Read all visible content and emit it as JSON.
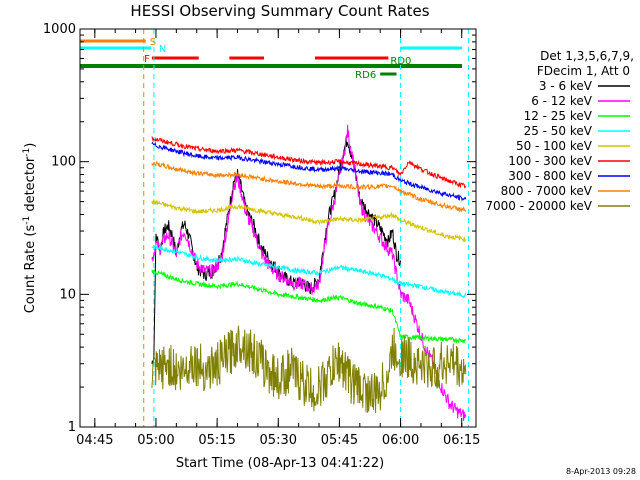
{
  "chart_data": {
    "type": "line",
    "title": "HESSI Observing Summary Count Rates",
    "xlabel": "Start Time (08-Apr-13 04:41:22)",
    "ylabel": "Count Rate (s",
    "ylabel_sup": "-1",
    "ylabel_tail": " detector",
    "ylabel_close": ")",
    "y_scale": "log",
    "ylim": [
      1,
      1000
    ],
    "xlim": [
      "04:41:22",
      "06:18:30"
    ],
    "x_ticks": [
      "04:45",
      "05:00",
      "05:15",
      "05:30",
      "05:45",
      "06:00",
      "06:15"
    ],
    "y_ticks": [
      "1",
      "10",
      "100",
      "1000"
    ],
    "date_stamp": "8-Apr-2013 09:28",
    "legend": {
      "placement": "right",
      "header": [
        "Det 1,3,5,6,7,9,",
        "FDecim 1, Att 0"
      ],
      "entries": [
        {
          "label": "3 - 6 keV",
          "color": "#000000"
        },
        {
          "label": "6 - 12 keV",
          "color": "#ff00ff"
        },
        {
          "label": "12 - 25 keV",
          "color": "#00ff00"
        },
        {
          "label": "25 - 50 keV",
          "color": "#00ffff"
        },
        {
          "label": "50 - 100 keV",
          "color": "#d4c400"
        },
        {
          "label": "100 - 300 keV",
          "color": "#ff0000"
        },
        {
          "label": "300 - 800 keV",
          "color": "#0000ff"
        },
        {
          "label": "800 - 7000 keV",
          "color": "#ff8000"
        },
        {
          "label": "7000 - 20000 keV",
          "color": "#808000"
        }
      ]
    },
    "flags": [
      {
        "label": "S",
        "color": "#ff8000",
        "segments": [
          [
            "04:41:22",
            "04:57:30"
          ]
        ]
      },
      {
        "label": "N",
        "color": "#00ffff",
        "segments": [
          [
            "04:41:22",
            "04:58:50"
          ],
          [
            "06:00:00",
            "06:18:30"
          ]
        ]
      },
      {
        "label": "F",
        "color": "#ff0000",
        "segments": [
          [
            "04:59:00",
            "05:10:30"
          ],
          [
            "05:18:00",
            "05:26:30"
          ],
          [
            "05:39:00",
            "05:57:00"
          ]
        ]
      },
      {
        "label": "RD0",
        "color": "#008000",
        "segments": [
          [
            "04:41:22",
            "06:18:30"
          ]
        ]
      },
      {
        "label": "RD6",
        "color": "#008000",
        "segments": [
          [
            "05:55:00",
            "05:59:00"
          ]
        ]
      }
    ],
    "vlines": [
      {
        "time": "04:57:00",
        "color": "#ff8000"
      },
      {
        "time": "04:59:30",
        "color": "#00ffff"
      },
      {
        "time": "06:00:00",
        "color": "#00ffff"
      },
      {
        "time": "06:16:40",
        "color": "#00ffff"
      }
    ],
    "series": [
      {
        "name": "3 - 6 keV",
        "color": "#000000",
        "x": [
          "04:59:00",
          "04:59:30",
          "05:00:00",
          "05:01:00",
          "05:02:00",
          "05:03:00",
          "05:04:00",
          "05:05:00",
          "05:06:00",
          "05:07:00",
          "05:08:00",
          "05:10:00",
          "05:12:00",
          "05:14:00",
          "05:16:00",
          "05:18:00",
          "05:19:00",
          "05:20:00",
          "05:21:00",
          "05:22:00",
          "05:23:00",
          "05:24:00",
          "05:26:00",
          "05:28:00",
          "05:30:00",
          "05:32:00",
          "05:34:00",
          "05:36:00",
          "05:38:00",
          "05:40:00",
          "05:42:00",
          "05:44:00",
          "05:46:00",
          "05:47:00",
          "05:48:00",
          "05:49:00",
          "05:50:00",
          "05:52:00",
          "05:54:00",
          "05:56:00",
          "05:57:00",
          "05:58:00",
          "05:59:00",
          "06:00:00"
        ],
        "values": [
          3,
          3.5,
          28,
          22,
          30,
          33,
          28,
          20,
          30,
          34,
          28,
          16,
          14,
          15,
          20,
          45,
          70,
          80,
          62,
          45,
          38,
          33,
          22,
          18,
          15,
          13,
          12,
          12,
          11,
          13,
          35,
          60,
          120,
          150,
          110,
          80,
          52,
          42,
          35,
          28,
          25,
          30,
          20,
          18
        ]
      },
      {
        "name": "6 - 12 keV",
        "color": "#ff00ff",
        "x": [
          "04:59:00",
          "05:00:00",
          "05:01:00",
          "05:02:00",
          "05:03:00",
          "05:04:00",
          "05:05:00",
          "05:06:00",
          "05:07:00",
          "05:08:00",
          "05:10:00",
          "05:12:00",
          "05:14:00",
          "05:16:00",
          "05:18:00",
          "05:19:00",
          "05:20:00",
          "05:21:00",
          "05:22:00",
          "05:23:00",
          "05:24:00",
          "05:26:00",
          "05:28:00",
          "05:30:00",
          "05:32:00",
          "05:34:00",
          "05:36:00",
          "05:38:00",
          "05:40:00",
          "05:42:00",
          "05:44:00",
          "05:46:00",
          "05:47:00",
          "05:48:00",
          "05:49:00",
          "05:50:00",
          "05:52:00",
          "05:54:00",
          "05:56:00",
          "05:58:00",
          "06:00:00",
          "06:02:00",
          "06:04:00",
          "06:06:00",
          "06:08:00",
          "06:10:00",
          "06:12:00",
          "06:14:00",
          "06:16:00"
        ],
        "values": [
          18,
          24,
          22,
          26,
          28,
          24,
          20,
          27,
          30,
          25,
          17,
          15,
          15,
          18,
          40,
          65,
          75,
          58,
          42,
          35,
          30,
          20,
          16,
          14,
          13,
          12,
          12,
          11,
          12,
          30,
          55,
          110,
          170,
          120,
          80,
          48,
          36,
          30,
          24,
          20,
          10,
          9,
          6,
          4,
          3,
          2,
          1.5,
          1.3,
          1.2
        ]
      },
      {
        "name": "12 - 25 keV",
        "color": "#00ff00",
        "x": [
          "04:59:00",
          "05:05:00",
          "05:10:00",
          "05:15:00",
          "05:20:00",
          "05:25:00",
          "05:30:00",
          "05:35:00",
          "05:40:00",
          "05:45:00",
          "05:50:00",
          "05:55:00",
          "05:58:00",
          "06:00:00",
          "06:05:00",
          "06:10:00",
          "06:16:00"
        ],
        "values": [
          15,
          13,
          12,
          11.5,
          12,
          11,
          10,
          9.5,
          9,
          9.5,
          8.5,
          8,
          7.5,
          4.8,
          4.7,
          4.6,
          4.5
        ]
      },
      {
        "name": "25 - 50 keV",
        "color": "#00ffff",
        "x": [
          "04:59:00",
          "05:05:00",
          "05:10:00",
          "05:15:00",
          "05:20:00",
          "05:25:00",
          "05:30:00",
          "05:35:00",
          "05:40:00",
          "05:45:00",
          "05:50:00",
          "05:55:00",
          "05:58:00",
          "06:00:00",
          "06:05:00",
          "06:10:00",
          "06:16:00"
        ],
        "values": [
          23,
          21,
          19,
          18,
          18.5,
          17,
          16,
          15,
          14.5,
          16,
          15,
          14,
          13,
          12,
          11.5,
          10.5,
          9.8
        ]
      },
      {
        "name": "50 - 100 keV",
        "color": "#d4c400",
        "x": [
          "04:59:00",
          "05:05:00",
          "05:10:00",
          "05:15:00",
          "05:20:00",
          "05:25:00",
          "05:30:00",
          "05:35:00",
          "05:40:00",
          "05:45:00",
          "05:50:00",
          "05:55:00",
          "05:58:00",
          "06:00:00",
          "06:05:00",
          "06:10:00",
          "06:16:00"
        ],
        "values": [
          50,
          45,
          42,
          43,
          46,
          43,
          40,
          38,
          35,
          37,
          36,
          38,
          40,
          36,
          32,
          28,
          26
        ]
      },
      {
        "name": "100 - 300 keV",
        "color": "#ff0000",
        "x": [
          "04:59:00",
          "05:05:00",
          "05:10:00",
          "05:15:00",
          "05:20:00",
          "05:25:00",
          "05:30:00",
          "05:35:00",
          "05:40:00",
          "05:45:00",
          "05:50:00",
          "05:55:00",
          "05:58:00",
          "06:00:00",
          "06:02:00",
          "06:05:00",
          "06:10:00",
          "06:16:00"
        ],
        "values": [
          150,
          135,
          125,
          120,
          122,
          115,
          108,
          102,
          98,
          100,
          96,
          92,
          90,
          80,
          100,
          88,
          75,
          65
        ]
      },
      {
        "name": "300 - 800 keV",
        "color": "#0000ff",
        "x": [
          "04:59:00",
          "05:05:00",
          "05:10:00",
          "05:15:00",
          "05:20:00",
          "05:25:00",
          "05:30:00",
          "05:35:00",
          "05:40:00",
          "05:45:00",
          "05:50:00",
          "05:55:00",
          "05:58:00",
          "06:00:00",
          "06:05:00",
          "06:10:00",
          "06:16:00"
        ],
        "values": [
          135,
          120,
          110,
          106,
          108,
          101,
          96,
          91,
          87,
          89,
          85,
          82,
          80,
          72,
          64,
          58,
          52
        ]
      },
      {
        "name": "800 - 7000 keV",
        "color": "#ff8000",
        "x": [
          "04:59:00",
          "05:05:00",
          "05:10:00",
          "05:15:00",
          "05:20:00",
          "05:25:00",
          "05:30:00",
          "05:35:00",
          "05:40:00",
          "05:45:00",
          "05:50:00",
          "05:55:00",
          "05:58:00",
          "06:00:00",
          "06:05:00",
          "06:10:00",
          "06:16:00"
        ],
        "values": [
          98,
          88,
          82,
          79,
          80,
          75,
          71,
          68,
          65,
          66,
          64,
          65,
          66,
          60,
          52,
          47,
          43
        ]
      },
      {
        "name": "7000 - 20000 keV",
        "color": "#808000",
        "x": [
          "04:59:00",
          "05:03:00",
          "05:06:00",
          "05:09:00",
          "05:12:00",
          "05:15:00",
          "05:18:00",
          "05:21:00",
          "05:24:00",
          "05:27:00",
          "05:30:00",
          "05:33:00",
          "05:36:00",
          "05:39:00",
          "05:42:00",
          "05:45:00",
          "05:48:00",
          "05:51:00",
          "05:54:00",
          "05:57:00",
          "05:58:00",
          "06:00:00",
          "06:04:00",
          "06:08:00",
          "06:12:00",
          "06:16:00"
        ],
        "values": [
          2.4,
          3.0,
          2.5,
          3.2,
          2.7,
          2.9,
          3.6,
          4.5,
          3.5,
          2.8,
          2.3,
          2.7,
          2.2,
          1.8,
          2.4,
          3.2,
          2.2,
          1.9,
          1.7,
          2.5,
          3.8,
          3.5,
          3.0,
          2.7,
          3.2,
          2.5
        ]
      }
    ]
  }
}
